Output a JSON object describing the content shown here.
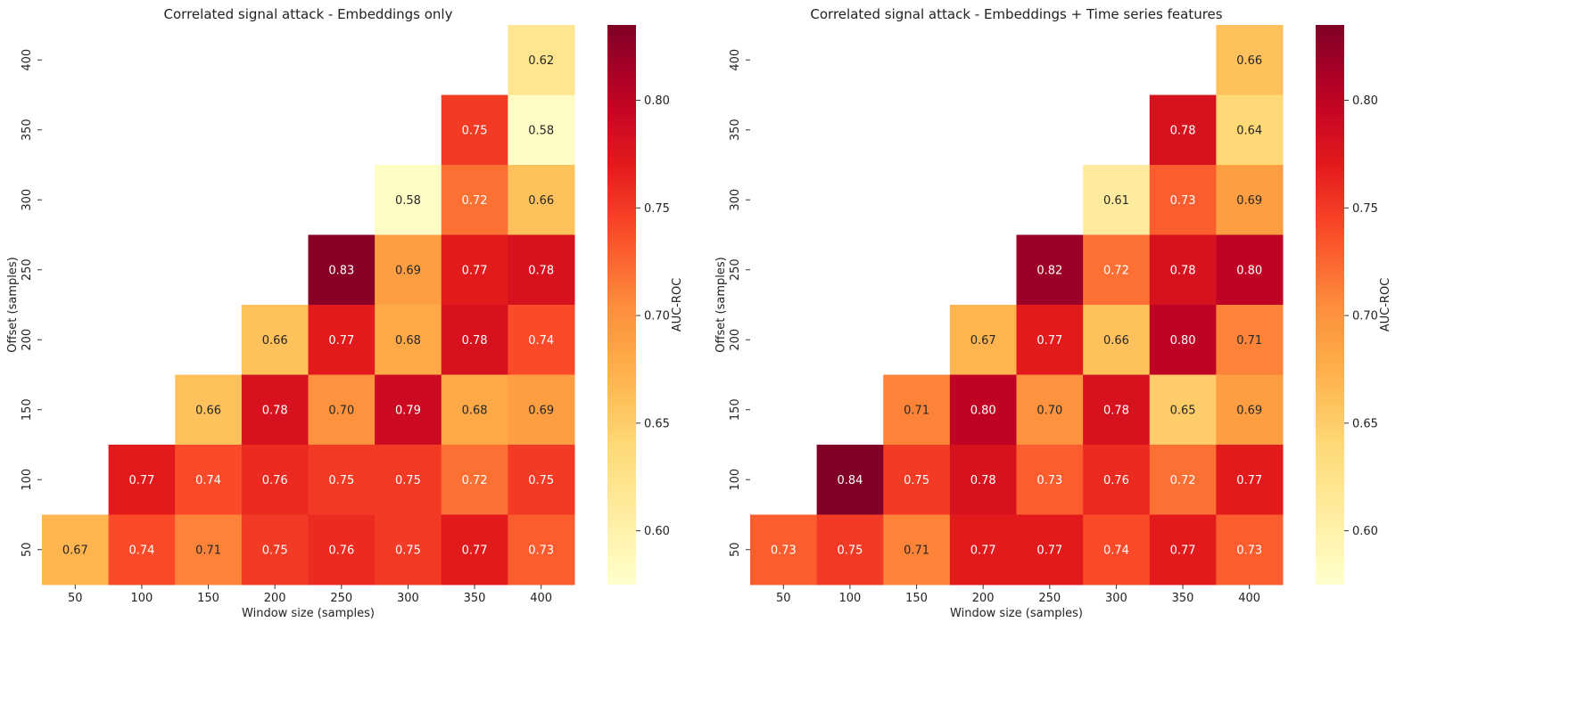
{
  "chart_data": [
    {
      "type": "heatmap",
      "title": "Correlated signal attack - Embeddings only",
      "xlabel": "Window size (samples)",
      "ylabel": "Offset (samples)",
      "colorbar_label": "AUC-ROC",
      "x_categories": [
        "50",
        "100",
        "150",
        "200",
        "250",
        "300",
        "350",
        "400"
      ],
      "y_categories": [
        "400",
        "350",
        "300",
        "250",
        "200",
        "150",
        "100",
        "50"
      ],
      "values": [
        [
          null,
          null,
          null,
          null,
          null,
          null,
          null,
          0.62
        ],
        [
          null,
          null,
          null,
          null,
          null,
          null,
          0.75,
          0.58
        ],
        [
          null,
          null,
          null,
          null,
          null,
          0.58,
          0.72,
          0.66
        ],
        [
          null,
          null,
          null,
          null,
          0.83,
          0.69,
          0.77,
          0.78
        ],
        [
          null,
          null,
          null,
          0.66,
          0.77,
          0.68,
          0.78,
          0.74
        ],
        [
          null,
          null,
          0.66,
          0.78,
          0.7,
          0.79,
          0.68,
          0.69
        ],
        [
          null,
          0.77,
          0.74,
          0.76,
          0.75,
          0.75,
          0.72,
          0.75
        ],
        [
          0.67,
          0.74,
          0.71,
          0.75,
          0.76,
          0.75,
          0.77,
          0.73
        ]
      ]
    },
    {
      "type": "heatmap",
      "title": "Correlated signal attack - Embeddings + Time series features",
      "xlabel": "Window size (samples)",
      "ylabel": "Offset (samples)",
      "colorbar_label": "AUC-ROC",
      "x_categories": [
        "50",
        "100",
        "150",
        "200",
        "250",
        "300",
        "350",
        "400"
      ],
      "y_categories": [
        "400",
        "350",
        "300",
        "250",
        "200",
        "150",
        "100",
        "50"
      ],
      "values": [
        [
          null,
          null,
          null,
          null,
          null,
          null,
          null,
          0.66
        ],
        [
          null,
          null,
          null,
          null,
          null,
          null,
          0.78,
          0.64
        ],
        [
          null,
          null,
          null,
          null,
          null,
          0.61,
          0.73,
          0.69
        ],
        [
          null,
          null,
          null,
          null,
          0.82,
          0.72,
          0.78,
          0.8
        ],
        [
          null,
          null,
          null,
          0.67,
          0.77,
          0.66,
          0.8,
          0.71
        ],
        [
          null,
          null,
          0.71,
          0.8,
          0.7,
          0.78,
          0.65,
          0.69
        ],
        [
          null,
          0.84,
          0.75,
          0.78,
          0.73,
          0.76,
          0.72,
          0.77
        ],
        [
          0.73,
          0.75,
          0.71,
          0.77,
          0.77,
          0.74,
          0.77,
          0.73
        ]
      ]
    }
  ],
  "colorscale": {
    "name": "YlOrRd",
    "vmin": 0.575,
    "vmax": 0.835,
    "ticks": [
      "0.60",
      "0.65",
      "0.70",
      "0.75",
      "0.80"
    ]
  }
}
